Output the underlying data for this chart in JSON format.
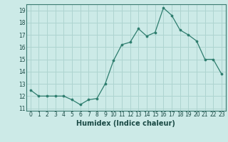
{
  "x": [
    0,
    1,
    2,
    3,
    4,
    5,
    6,
    7,
    8,
    9,
    10,
    11,
    12,
    13,
    14,
    15,
    16,
    17,
    18,
    19,
    20,
    21,
    22,
    23
  ],
  "y": [
    12.5,
    12.0,
    12.0,
    12.0,
    12.0,
    11.7,
    11.3,
    11.7,
    11.8,
    13.0,
    14.9,
    16.2,
    16.4,
    17.5,
    16.9,
    17.2,
    19.2,
    18.6,
    17.4,
    17.0,
    16.5,
    15.0,
    15.0,
    13.8
  ],
  "title": "",
  "xlabel": "Humidex (Indice chaleur)",
  "ylabel": "",
  "ylim": [
    10.8,
    19.5
  ],
  "yticks": [
    11,
    12,
    13,
    14,
    15,
    16,
    17,
    18,
    19
  ],
  "xticks": [
    0,
    1,
    2,
    3,
    4,
    5,
    6,
    7,
    8,
    9,
    10,
    11,
    12,
    13,
    14,
    15,
    16,
    17,
    18,
    19,
    20,
    21,
    22,
    23
  ],
  "line_color": "#2e7d6e",
  "marker_color": "#2e7d6e",
  "bg_color": "#cceae7",
  "grid_color": "#aed4d0",
  "label_fontsize": 7,
  "tick_fontsize": 5.5
}
